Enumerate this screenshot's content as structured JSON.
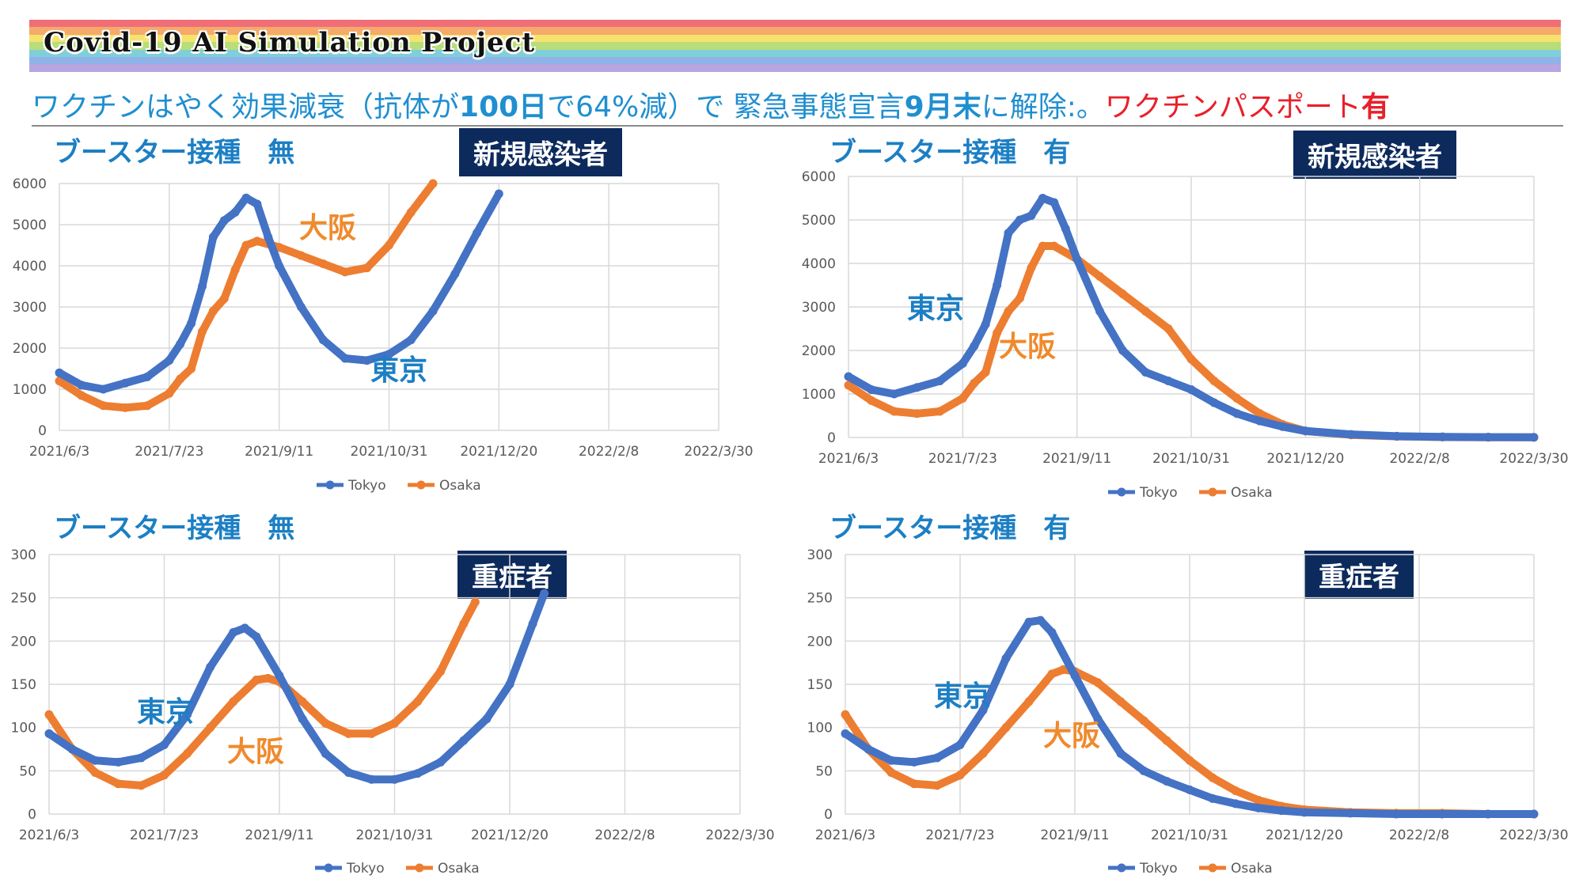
{
  "banner": {
    "title": "Covid-19 AI Simulation Project",
    "colors": [
      "#f06e78",
      "#f5a96a",
      "#f5e36e",
      "#b8dd7a",
      "#7fcfd9",
      "#8fb2e8",
      "#b7a6e0"
    ]
  },
  "headline": {
    "part1": "ワクチンはやく効果減衰（抗体が",
    "part2": "100日",
    "part3": "で64%減）で 緊急事態宣言",
    "part4": "9月末",
    "part5": "に解除:。",
    "part6": "ワクチンパスポート",
    "part7": "有"
  },
  "panels": [
    {
      "title": "ブースター接種　無",
      "label": "新規感染者"
    },
    {
      "title": "ブースター接種　有",
      "label": "新規感染者"
    },
    {
      "title": "ブースター接種　無",
      "label": "重症者"
    },
    {
      "title": "ブースター接種　有",
      "label": "重症者"
    }
  ],
  "colors": {
    "tokyo": "#4472c4",
    "osaka": "#ed7d31",
    "tokyo_label": "#1c7fc4",
    "osaka_label": "#f08a2c",
    "grid": "#d9d9d9"
  },
  "chart_data": [
    {
      "type": "line",
      "x_ticks": [
        "2021/6/3",
        "2021/7/23",
        "2021/9/11",
        "2021/10/31",
        "2021/12/20",
        "2022/2/8",
        "2022/3/30"
      ],
      "x_start": "2021/6/3",
      "x_end": "2022/3/30",
      "ylim": [
        0,
        6000
      ],
      "y_ticks": [
        0,
        1000,
        2000,
        3000,
        4000,
        5000,
        6000
      ],
      "grid": true,
      "legend": "bottom",
      "annotations": [
        {
          "text": "大阪",
          "series": "Osaka"
        },
        {
          "text": "東京",
          "series": "Tokyo"
        }
      ],
      "series": [
        {
          "name": "Tokyo",
          "days": [
            0,
            10,
            20,
            30,
            40,
            50,
            55,
            60,
            65,
            70,
            75,
            80,
            85,
            90,
            95,
            100,
            110,
            120,
            130,
            140,
            150,
            160,
            170,
            180,
            190,
            200
          ],
          "values": [
            1400,
            1100,
            1000,
            1150,
            1300,
            1700,
            2100,
            2600,
            3500,
            4700,
            5100,
            5300,
            5650,
            5500,
            4700,
            4000,
            3000,
            2200,
            1750,
            1700,
            1850,
            2200,
            2900,
            3800,
            4800,
            5750
          ]
        },
        {
          "name": "Osaka",
          "days": [
            0,
            10,
            20,
            30,
            40,
            50,
            55,
            60,
            65,
            70,
            75,
            80,
            85,
            90,
            100,
            110,
            120,
            130,
            140,
            150,
            160,
            170
          ],
          "values": [
            1200,
            850,
            600,
            550,
            600,
            900,
            1250,
            1500,
            2400,
            2900,
            3200,
            3900,
            4500,
            4600,
            4450,
            4250,
            4050,
            3850,
            3950,
            4500,
            5300,
            6000
          ]
        }
      ]
    },
    {
      "type": "line",
      "x_ticks": [
        "2021/6/3",
        "2021/7/23",
        "2021/9/11",
        "2021/10/31",
        "2021/12/20",
        "2022/2/8",
        "2022/3/30"
      ],
      "x_start": "2021/6/3",
      "x_end": "2022/3/30",
      "ylim": [
        0,
        6000
      ],
      "y_ticks": [
        0,
        1000,
        2000,
        3000,
        4000,
        5000,
        6000
      ],
      "grid": true,
      "legend": "bottom",
      "annotations": [
        {
          "text": "東京",
          "series": "Tokyo"
        },
        {
          "text": "大阪",
          "series": "Osaka"
        }
      ],
      "series": [
        {
          "name": "Tokyo",
          "days": [
            0,
            10,
            20,
            30,
            40,
            50,
            55,
            60,
            65,
            70,
            75,
            80,
            85,
            90,
            95,
            100,
            110,
            120,
            130,
            140,
            150,
            160,
            170,
            180,
            190,
            200,
            220,
            240,
            260,
            280,
            300
          ],
          "values": [
            1400,
            1100,
            1000,
            1150,
            1300,
            1700,
            2100,
            2600,
            3500,
            4700,
            5000,
            5100,
            5500,
            5400,
            4800,
            4100,
            2900,
            2000,
            1500,
            1300,
            1100,
            800,
            550,
            380,
            250,
            150,
            70,
            30,
            15,
            8,
            5
          ]
        },
        {
          "name": "Osaka",
          "days": [
            0,
            10,
            20,
            30,
            40,
            50,
            55,
            60,
            65,
            70,
            75,
            80,
            85,
            90,
            100,
            110,
            120,
            130,
            140,
            150,
            160,
            170,
            180,
            190,
            200,
            220,
            240,
            260,
            280,
            300
          ],
          "values": [
            1200,
            850,
            600,
            550,
            600,
            900,
            1250,
            1500,
            2400,
            2900,
            3200,
            3900,
            4400,
            4400,
            4100,
            3700,
            3300,
            2900,
            2500,
            1800,
            1300,
            900,
            550,
            300,
            150,
            60,
            25,
            10,
            5,
            3
          ]
        }
      ]
    },
    {
      "type": "line",
      "x_ticks": [
        "2021/6/3",
        "2021/7/23",
        "2021/9/11",
        "2021/10/31",
        "2021/12/20",
        "2022/2/8",
        "2022/3/30"
      ],
      "x_start": "2021/6/3",
      "x_end": "2022/3/30",
      "ylim": [
        0,
        300
      ],
      "y_ticks": [
        0,
        50,
        100,
        150,
        200,
        250,
        300
      ],
      "grid": true,
      "legend": "bottom",
      "annotations": [
        {
          "text": "東京",
          "series": "Tokyo"
        },
        {
          "text": "大阪",
          "series": "Osaka"
        }
      ],
      "series": [
        {
          "name": "Tokyo",
          "days": [
            0,
            10,
            20,
            30,
            40,
            50,
            60,
            70,
            80,
            85,
            90,
            100,
            110,
            120,
            130,
            140,
            150,
            160,
            170,
            180,
            190,
            200,
            210,
            215
          ],
          "values": [
            93,
            75,
            62,
            60,
            65,
            80,
            115,
            170,
            210,
            215,
            205,
            160,
            110,
            70,
            48,
            40,
            40,
            47,
            60,
            85,
            110,
            150,
            220,
            255
          ]
        },
        {
          "name": "Osaka",
          "days": [
            0,
            10,
            20,
            30,
            40,
            50,
            60,
            70,
            80,
            90,
            95,
            100,
            110,
            120,
            130,
            140,
            150,
            160,
            170,
            180,
            185
          ],
          "values": [
            115,
            75,
            48,
            35,
            33,
            45,
            70,
            100,
            130,
            155,
            157,
            153,
            130,
            105,
            93,
            93,
            105,
            130,
            165,
            220,
            245
          ]
        }
      ]
    },
    {
      "type": "line",
      "x_ticks": [
        "2021/6/3",
        "2021/7/23",
        "2021/9/11",
        "2021/10/31",
        "2021/12/20",
        "2022/2/8",
        "2022/3/30"
      ],
      "x_start": "2021/6/3",
      "x_end": "2022/3/30",
      "ylim": [
        0,
        300
      ],
      "y_ticks": [
        0,
        50,
        100,
        150,
        200,
        250,
        300
      ],
      "grid": true,
      "legend": "bottom",
      "annotations": [
        {
          "text": "東京",
          "series": "Tokyo"
        },
        {
          "text": "大阪",
          "series": "Osaka"
        }
      ],
      "series": [
        {
          "name": "Tokyo",
          "days": [
            0,
            10,
            20,
            30,
            40,
            50,
            60,
            70,
            80,
            85,
            90,
            100,
            110,
            120,
            130,
            140,
            150,
            160,
            170,
            180,
            190,
            200,
            220,
            240,
            260,
            280,
            300
          ],
          "values": [
            93,
            75,
            62,
            60,
            65,
            80,
            120,
            180,
            222,
            224,
            210,
            160,
            110,
            70,
            50,
            38,
            28,
            18,
            12,
            7,
            4,
            2,
            1,
            0,
            0,
            0,
            0
          ]
        },
        {
          "name": "Osaka",
          "days": [
            0,
            10,
            20,
            30,
            40,
            50,
            60,
            70,
            80,
            90,
            95,
            100,
            110,
            120,
            130,
            140,
            150,
            160,
            170,
            180,
            190,
            200,
            220,
            240,
            260,
            280,
            300
          ],
          "values": [
            115,
            75,
            48,
            35,
            33,
            45,
            70,
            100,
            130,
            162,
            167,
            165,
            152,
            130,
            108,
            85,
            62,
            42,
            27,
            16,
            9,
            5,
            2,
            1,
            1,
            0,
            0
          ]
        }
      ]
    }
  ]
}
